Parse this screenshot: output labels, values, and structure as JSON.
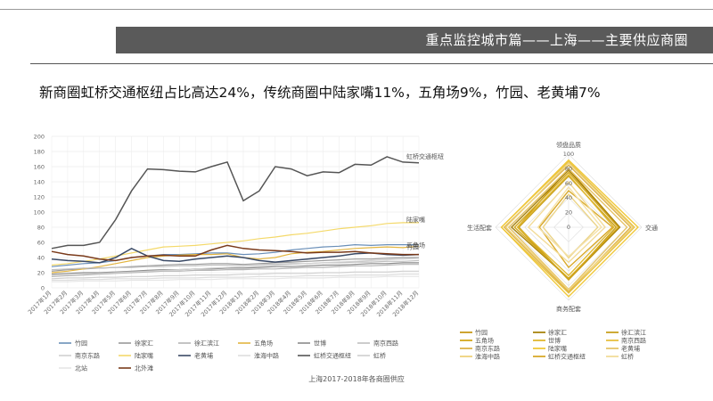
{
  "header": {
    "title": "重点监控城市篇——上海——主要供应商圈"
  },
  "headline": "新商圈虹桥交通枢纽占比高达24%，传统商圈中陆家嘴11%，五角场9%，竹园、老黄埔7%",
  "caption": "上海2017-2018年各商圈供应",
  "chart_data": [
    {
      "type": "line",
      "ylim": [
        0,
        200
      ],
      "yticks": [
        0,
        20,
        40,
        60,
        80,
        100,
        120,
        140,
        160,
        180,
        200
      ],
      "categories": [
        "2017年1月",
        "2017年2月",
        "2017年3月",
        "2017年4月",
        "2017年5月",
        "2017年6月",
        "2017年7月",
        "2017年8月",
        "2017年9月",
        "2017年10月",
        "2017年11月",
        "2017年12月",
        "2018年1月",
        "2018年2月",
        "2018年3月",
        "2018年4月",
        "2018年5月",
        "2018年6月",
        "2018年7月",
        "2018年8月",
        "2018年9月",
        "2018年10月",
        "2018年11月",
        "2018年12月"
      ],
      "end_labels": [
        {
          "series": "虹桥交通枢纽",
          "text": "虹桥交通枢纽"
        },
        {
          "series": "陆家嘴",
          "text": "陆家嘴"
        },
        {
          "series": "五角场",
          "text": "五角场"
        },
        {
          "series": "竹园",
          "text": "竹园"
        }
      ],
      "series": [
        {
          "name": "竹园",
          "color": "#6a8fb8",
          "values": [
            28,
            30,
            32,
            33,
            36,
            40,
            42,
            44,
            44,
            45,
            46,
            46,
            44,
            45,
            47,
            50,
            52,
            54,
            55,
            57,
            56,
            57,
            57,
            57
          ]
        },
        {
          "name": "徐家汇",
          "color": "#9a9a9a",
          "values": [
            22,
            24,
            25,
            26,
            27,
            28,
            29,
            30,
            31,
            31,
            32,
            32,
            31,
            32,
            33,
            34,
            35,
            36,
            37,
            38,
            38,
            39,
            40,
            40
          ]
        },
        {
          "name": "徐汇滨江",
          "color": "#b5b5b5",
          "values": [
            15,
            16,
            17,
            18,
            19,
            20,
            21,
            22,
            22,
            23,
            23,
            24,
            24,
            25,
            25,
            26,
            27,
            27,
            28,
            29,
            29,
            30,
            31,
            31
          ]
        },
        {
          "name": "五角场",
          "color": "#e3b540",
          "values": [
            20,
            22,
            25,
            28,
            32,
            36,
            40,
            42,
            43,
            44,
            44,
            45,
            40,
            38,
            40,
            45,
            47,
            48,
            50,
            52,
            53,
            54,
            53,
            55
          ]
        },
        {
          "name": "世博",
          "color": "#8a8a8a",
          "values": [
            18,
            19,
            20,
            20,
            21,
            22,
            23,
            24,
            24,
            25,
            25,
            26,
            26,
            27,
            28,
            28,
            29,
            30,
            30,
            31,
            32,
            32,
            33,
            33
          ]
        },
        {
          "name": "南京西路",
          "color": "#c0c0c0",
          "values": [
            24,
            25,
            26,
            26,
            27,
            27,
            28,
            28,
            29,
            29,
            30,
            30,
            30,
            31,
            31,
            32,
            32,
            33,
            33,
            34,
            34,
            35,
            35,
            36
          ]
        },
        {
          "name": "南京东路",
          "color": "#d0d0d0",
          "values": [
            12,
            13,
            13,
            14,
            14,
            15,
            15,
            16,
            16,
            17,
            17,
            17,
            18,
            18,
            19,
            19,
            19,
            20,
            20,
            21,
            21,
            21,
            22,
            22
          ]
        },
        {
          "name": "陆家嘴",
          "color": "#f4d96a",
          "values": [
            30,
            32,
            35,
            38,
            42,
            46,
            50,
            54,
            55,
            56,
            58,
            60,
            62,
            65,
            67,
            70,
            72,
            75,
            78,
            80,
            82,
            85,
            86,
            86
          ]
        },
        {
          "name": "老黄埔",
          "color": "#3a4a66",
          "values": [
            38,
            36,
            35,
            33,
            40,
            52,
            42,
            36,
            35,
            38,
            40,
            42,
            40,
            36,
            34,
            36,
            38,
            40,
            42,
            45,
            46,
            44,
            43,
            44
          ]
        },
        {
          "name": "淮海中路",
          "color": "#dddddd",
          "values": [
            10,
            10,
            11,
            11,
            12,
            12,
            12,
            13,
            13,
            13,
            14,
            14,
            14,
            15,
            15,
            15,
            16,
            16,
            16,
            17,
            17,
            17,
            18,
            18
          ]
        },
        {
          "name": "虹桥交通枢纽",
          "color": "#555555",
          "values": [
            52,
            56,
            56,
            60,
            90,
            128,
            157,
            156,
            154,
            153,
            160,
            166,
            115,
            128,
            160,
            157,
            148,
            153,
            152,
            163,
            162,
            173,
            166,
            165
          ]
        },
        {
          "name": "虹桥",
          "color": "#cfcfcf",
          "values": [
            16,
            17,
            18,
            19,
            20,
            21,
            22,
            23,
            24,
            25,
            26,
            27,
            28,
            29,
            30,
            31,
            32,
            33,
            34,
            35,
            36,
            37,
            38,
            39
          ]
        },
        {
          "name": "北站",
          "color": "#e6e6e6",
          "values": [
            8,
            8,
            9,
            9,
            9,
            10,
            10,
            10,
            11,
            11,
            11,
            12,
            12,
            12,
            12,
            13,
            13,
            13,
            14,
            14,
            14,
            15,
            15,
            15
          ]
        },
        {
          "name": "北外滩",
          "color": "#7a3a1a",
          "values": [
            48,
            44,
            42,
            38,
            36,
            40,
            42,
            43,
            42,
            42,
            50,
            56,
            52,
            50,
            49,
            48,
            46,
            47,
            47,
            48,
            46,
            45,
            44,
            44
          ]
        }
      ]
    },
    {
      "type": "radar",
      "axes": [
        "领盘品质",
        "交通",
        "商务配套",
        "生活配套"
      ],
      "rlim": [
        0,
        100
      ],
      "rticks": [
        0,
        20,
        40,
        60,
        80,
        100
      ],
      "series": [
        {
          "name": "竹园",
          "color": "#c89a1a",
          "values": [
            80,
            70,
            72,
            70
          ]
        },
        {
          "name": "徐家汇",
          "color": "#a8830e",
          "values": [
            78,
            70,
            70,
            78
          ]
        },
        {
          "name": "徐汇滨江",
          "color": "#c8a020",
          "values": [
            70,
            65,
            72,
            68
          ]
        },
        {
          "name": "五角场",
          "color": "#d4a81c",
          "values": [
            75,
            68,
            70,
            74
          ]
        },
        {
          "name": "世博",
          "color": "#e0b830",
          "values": [
            72,
            62,
            66,
            70
          ]
        },
        {
          "name": "南京西路",
          "color": "#e8c040",
          "values": [
            90,
            90,
            90,
            92
          ]
        },
        {
          "name": "南京东路",
          "color": "#dcb24a",
          "values": [
            85,
            85,
            88,
            88
          ]
        },
        {
          "name": "陆家嘴",
          "color": "#f0c83a",
          "values": [
            92,
            95,
            95,
            92
          ]
        },
        {
          "name": "老黄埔",
          "color": "#e6c46a",
          "values": [
            80,
            80,
            85,
            82
          ]
        },
        {
          "name": "淮海中路",
          "color": "#efd27a",
          "values": [
            88,
            88,
            86,
            86
          ]
        },
        {
          "name": "虹桥交通枢纽",
          "color": "#d9a92a",
          "values": [
            50,
            60,
            55,
            40
          ]
        },
        {
          "name": "虹桥",
          "color": "#f2dc9a",
          "values": [
            62,
            50,
            48,
            55
          ]
        },
        {
          "name": "北站",
          "color": "#ecd58a",
          "values": [
            45,
            40,
            42,
            35
          ]
        },
        {
          "name": "北外滩",
          "color": "#f5e2a8",
          "values": [
            55,
            45,
            40,
            42
          ]
        }
      ],
      "legend": [
        "竹园",
        "徐家汇",
        "徐汇滨江",
        "五角场",
        "世博",
        "南京西路",
        "南京东路",
        "陆家嘴",
        "老黄埔",
        "淮海中路",
        "虹桥交通枢纽",
        "虹桥"
      ]
    }
  ]
}
